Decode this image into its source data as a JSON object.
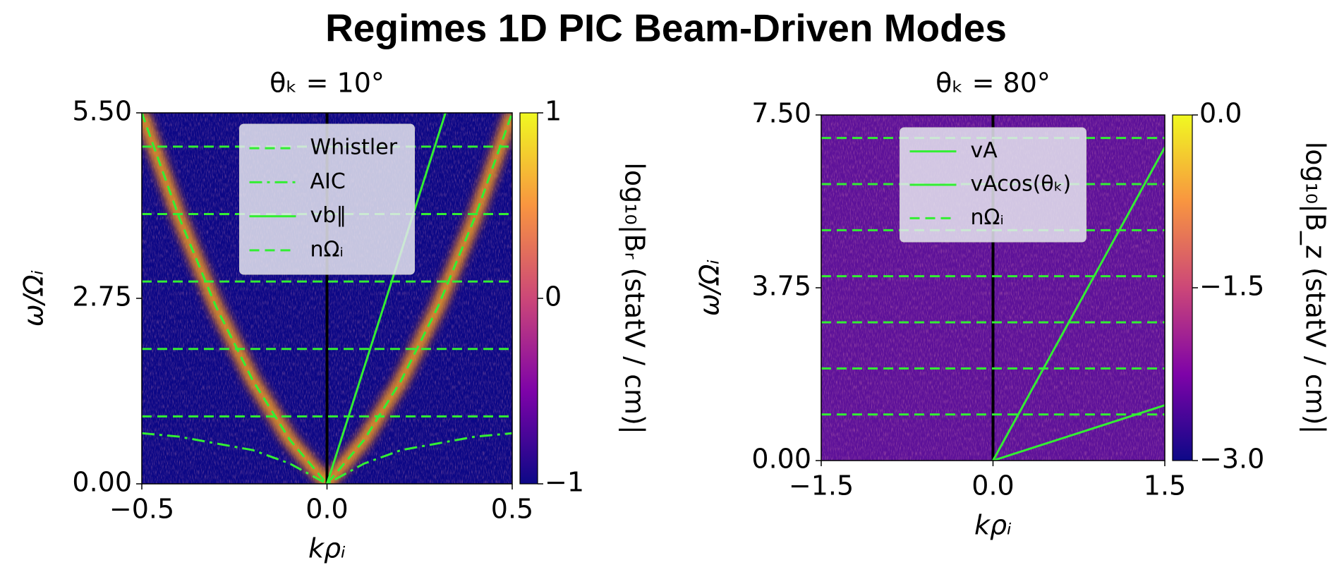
{
  "title": "Regimes 1D PIC Beam-Driven Modes",
  "chart_data": [
    {
      "type": "heatmap",
      "title": "θₖ = 10°",
      "x_label": "kρᵢ",
      "y_label": "ω/Ωᵢ",
      "xlim": [
        -0.5,
        0.5
      ],
      "ylim": [
        0,
        5.5
      ],
      "xticks": [
        {
          "value": -0.5,
          "label": "−0.5"
        },
        {
          "value": 0,
          "label": "0.0"
        },
        {
          "value": 0.5,
          "label": "0.5"
        }
      ],
      "yticks": [
        {
          "value": 0,
          "label": "0.00"
        },
        {
          "value": 2.75,
          "label": "2.75"
        },
        {
          "value": 5.5,
          "label": "5.50"
        }
      ],
      "background": "#0c0786",
      "colorbar": {
        "label": "log₁₀|Bᵣ (statV / cm)|",
        "lim": [
          -1,
          1
        ],
        "ticks": [
          {
            "value": -1,
            "label": "−1"
          },
          0,
          1
        ],
        "colormap": "plasma"
      },
      "legend": "upper center",
      "series": [
        {
          "name": "Whistler",
          "color": "#33ee33",
          "style": "dashed",
          "kind": "line",
          "x": [
            -0.5,
            -0.4,
            -0.3,
            -0.2,
            -0.1,
            0,
            0.1,
            0.2,
            0.3,
            0.4,
            0.5
          ],
          "values": [
            5.5,
            3.96,
            2.63,
            1.53,
            0.65,
            0,
            0.65,
            1.53,
            2.63,
            3.96,
            5.5
          ]
        },
        {
          "name": "AIC",
          "color": "#33ee33",
          "style": "dashdot",
          "kind": "line",
          "x": [
            -0.5,
            -0.4,
            -0.3,
            -0.2,
            -0.1,
            0,
            0.1,
            0.2,
            0.3,
            0.4,
            0.5
          ],
          "values": [
            0.75,
            0.7,
            0.6,
            0.5,
            0.3,
            0,
            0.3,
            0.5,
            0.6,
            0.7,
            0.75
          ]
        },
        {
          "name": "vb∥",
          "color": "#33ee33",
          "style": "solid",
          "kind": "line",
          "x": [
            0,
            0.32
          ],
          "values": [
            0,
            5.5
          ]
        },
        {
          "name": "nΩᵢ",
          "color": "#33ee33",
          "style": "dashed",
          "kind": "hline",
          "values": [
            1,
            2,
            3,
            4,
            5
          ]
        }
      ]
    },
    {
      "type": "heatmap",
      "title": "θₖ = 80°",
      "x_label": "kρᵢ",
      "y_label": "ω/Ωᵢ",
      "xlim": [
        -1.5,
        1.5
      ],
      "ylim": [
        0,
        7.5
      ],
      "xticks": [
        {
          "value": -1.5,
          "label": "−1.5"
        },
        {
          "value": 0,
          "label": "0.0"
        },
        {
          "value": 1.5,
          "label": "1.5"
        }
      ],
      "yticks": [
        {
          "value": 0,
          "label": "0.00"
        },
        {
          "value": 3.75,
          "label": "3.75"
        },
        {
          "value": 7.5,
          "label": "7.50"
        }
      ],
      "background": "#5d1199",
      "colorbar": {
        "label": "log₁₀|B_z (statV / cm)|",
        "lim": [
          -3,
          0
        ],
        "ticks": [
          {
            "value": -3,
            "label": "−3.0"
          },
          {
            "value": -1.5,
            "label": "−1.5"
          },
          {
            "value": 0,
            "label": "0.0"
          }
        ],
        "colormap": "plasma"
      },
      "legend": "upper center",
      "series": [
        {
          "name": "vA",
          "color": "#33ee33",
          "style": "solid",
          "kind": "line",
          "x": [
            0,
            1.5
          ],
          "values": [
            0,
            6.8
          ]
        },
        {
          "name": "vAcos(θₖ)",
          "color": "#33ee33",
          "style": "solid",
          "kind": "line",
          "x": [
            0,
            1.5
          ],
          "values": [
            0,
            1.2
          ]
        },
        {
          "name": "nΩᵢ",
          "color": "#33ee33",
          "style": "dashed",
          "kind": "hline",
          "values": [
            1,
            2,
            3,
            4,
            5,
            6,
            7
          ]
        }
      ]
    }
  ]
}
